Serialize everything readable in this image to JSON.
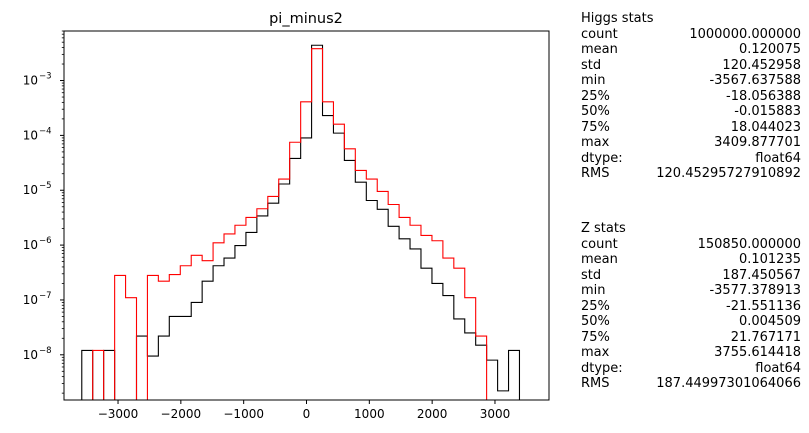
{
  "chart_data": {
    "type": "histogram",
    "title": "pi_minus2",
    "xlabel": "",
    "ylabel": "",
    "xlim": [
      -3860,
      3860
    ],
    "ylim": [
      1.5e-09,
      0.008
    ],
    "yscale": "log",
    "grid": false,
    "xticks": [
      -3000,
      -2000,
      -1000,
      0,
      1000,
      2000,
      3000
    ],
    "xtick_labels": [
      "−3000",
      "−2000",
      "−1000",
      "0",
      "1000",
      "2000",
      "3000"
    ],
    "yticks": [
      1e-08,
      1e-07,
      1e-06,
      1e-05,
      0.0001,
      0.001
    ],
    "ytick_labels": [
      "10",
      "10",
      "10",
      "10",
      "10",
      "10"
    ],
    "ytick_exponents": [
      "−8",
      "−7",
      "−6",
      "−5",
      "−4",
      "−3"
    ],
    "bin_edges": [
      -3577,
      -3403,
      -3229,
      -3054,
      -2880,
      -2706,
      -2532,
      -2358,
      -2184,
      -2009,
      -1835,
      -1661,
      -1487,
      -1313,
      -1139,
      -964,
      -790,
      -616,
      -442,
      -268,
      -93,
      81,
      255,
      429,
      603,
      777,
      952,
      1126,
      1300,
      1474,
      1648,
      1822,
      1997,
      2171,
      2345,
      2519,
      2693,
      2867,
      3042,
      3216,
      3390
    ],
    "series": [
      {
        "name": "",
        "color": "#000000",
        "values": [
          1.2e-08,
          0,
          1.2e-08,
          0,
          0,
          2.2e-08,
          9.5e-09,
          2.2e-08,
          5e-08,
          5e-08,
          9e-08,
          2.2e-07,
          4.2e-07,
          5.8e-07,
          9.8e-07,
          1.7e-06,
          3.4e-06,
          5.8e-06,
          1.3e-05,
          3.8e-05,
          9e-05,
          0.0044,
          0.00023,
          0.00011,
          3.5e-05,
          1.4e-05,
          6.5e-06,
          4.5e-06,
          2.2e-06,
          1.3e-06,
          8.5e-07,
          3.8e-07,
          2e-07,
          1.2e-07,
          4.5e-08,
          2.5e-08,
          1.5e-08,
          8e-09,
          2.2e-09,
          1.2e-08
        ]
      },
      {
        "name": "",
        "color": "#ff0000",
        "values": [
          0,
          1.2e-08,
          0,
          2.8e-07,
          1.1e-07,
          0,
          2.8e-07,
          2.2e-07,
          2.9e-07,
          4.2e-07,
          6.5e-07,
          5.2e-07,
          1.1e-06,
          1.6e-06,
          2.3e-06,
          3.2e-06,
          4.6e-06,
          7.7e-06,
          1.6e-05,
          7.5e-05,
          0.00041,
          0.0038,
          0.00041,
          0.00016,
          5.7e-05,
          2.3e-05,
          1.6e-05,
          9.5e-06,
          5.5e-06,
          3.2e-06,
          2.3e-06,
          1.5e-06,
          1.2e-06,
          5.8e-07,
          3.8e-07,
          1.1e-07,
          2.2e-08,
          0,
          0,
          0
        ]
      }
    ]
  },
  "stats": [
    {
      "title": "Higgs stats",
      "rows": [
        {
          "key": "count",
          "value": "1000000.000000"
        },
        {
          "key": "mean",
          "value": "0.120075"
        },
        {
          "key": "std",
          "value": "120.452958"
        },
        {
          "key": "min",
          "value": "-3567.637588"
        },
        {
          "key": "25%",
          "value": "-18.056388"
        },
        {
          "key": "50%",
          "value": "-0.015883"
        },
        {
          "key": "75%",
          "value": "18.044023"
        },
        {
          "key": "max",
          "value": "3409.877701"
        },
        {
          "key": "dtype:",
          "value": "float64"
        },
        {
          "key": "RMS",
          "value": "120.45295727910892"
        }
      ]
    },
    {
      "title": "Z stats",
      "rows": [
        {
          "key": "count",
          "value": "150850.000000"
        },
        {
          "key": "mean",
          "value": "0.101235"
        },
        {
          "key": "std",
          "value": "187.450567"
        },
        {
          "key": "min",
          "value": "-3577.378913"
        },
        {
          "key": "25%",
          "value": "-21.551136"
        },
        {
          "key": "50%",
          "value": "0.004509"
        },
        {
          "key": "75%",
          "value": "21.767171"
        },
        {
          "key": "max",
          "value": "3755.614418"
        },
        {
          "key": "dtype:",
          "value": "float64"
        },
        {
          "key": "RMS",
          "value": "187.44997301064066"
        }
      ]
    }
  ]
}
